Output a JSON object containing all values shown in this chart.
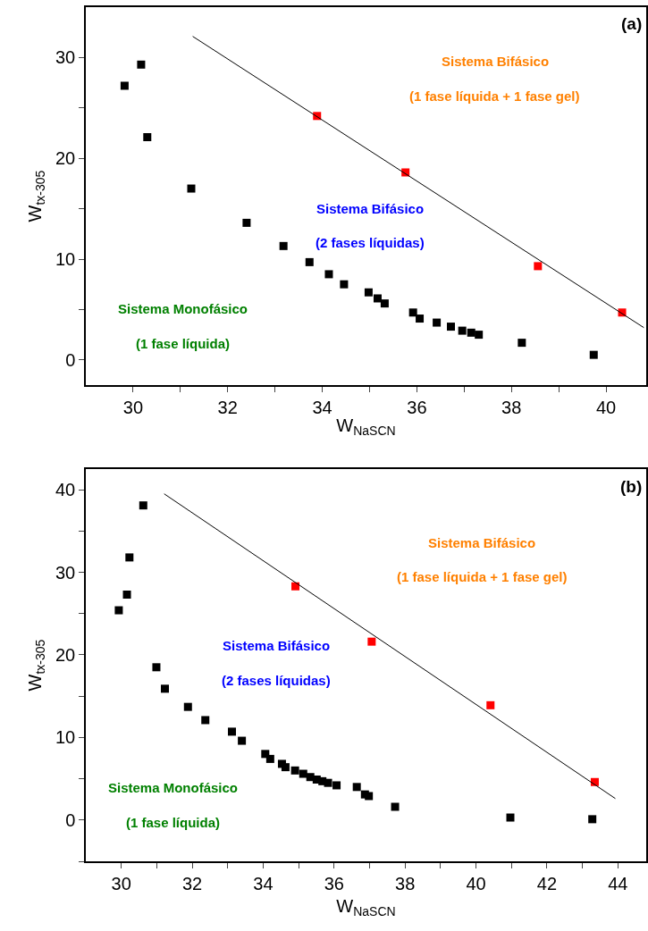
{
  "chart_data": [
    {
      "type": "scatter",
      "xlabel": "W$_{NaSCN}$",
      "ylabel": "W$_{tx-305}$",
      "legend": false,
      "grid": false,
      "xlim": [
        29,
        40.85
      ],
      "xticks": [
        30,
        {
          "value": 31,
          "label": null
        },
        32,
        {
          "value": 33,
          "label": null
        },
        34,
        {
          "value": 35,
          "label": null
        },
        36,
        {
          "value": 37,
          "label": null
        },
        38,
        {
          "value": 39,
          "label": null
        },
        40
      ],
      "ylim": [
        -2.5,
        35
      ],
      "yticks": [
        0,
        {
          "value": 5,
          "label": null
        },
        10,
        {
          "value": 15,
          "label": null
        },
        20,
        {
          "value": 25,
          "label": null
        },
        30
      ],
      "series": [
        {
          "color": "#000000",
          "marker": "square",
          "x": [
            29.82,
            30.17,
            30.3,
            31.23,
            32.4,
            33.18,
            33.73,
            34.14,
            34.46,
            34.98,
            35.17,
            35.32,
            35.92,
            36.06,
            36.42,
            36.72,
            36.96,
            37.15,
            37.31,
            38.22,
            39.74
          ],
          "values": [
            27.2,
            29.3,
            22.1,
            17.0,
            13.6,
            11.3,
            9.7,
            8.5,
            7.5,
            6.7,
            6.1,
            5.6,
            4.7,
            4.1,
            3.7,
            3.3,
            2.9,
            2.7,
            2.5,
            1.7,
            0.5
          ]
        },
        {
          "color": "#ff0000",
          "marker": "square",
          "x": [
            33.89,
            35.76,
            38.56,
            40.34
          ],
          "values": [
            24.2,
            18.6,
            9.3,
            4.7
          ]
        },
        {
          "type": "line",
          "marker": "none",
          "color": "#000000",
          "x": [
            31.26,
            40.8
          ],
          "values": [
            32.1,
            3.2
          ]
        }
      ],
      "annotations": [
        "(a)",
        "Sistema Bifásico",
        "(1 fase líquida + 1 fase gel)",
        "Sistema Bifásico",
        "(2 fases líquidas)",
        "Sistema Monofásico",
        "(1 fase líquida)"
      ]
    },
    {
      "type": "scatter",
      "xlabel": "W$_{NaSCN}$",
      "ylabel": "W$_{tx-305}$",
      "legend": false,
      "grid": false,
      "xlim": [
        29,
        44.8
      ],
      "xticks": [
        30,
        {
          "value": 31,
          "label": null
        },
        32,
        {
          "value": 33,
          "label": null
        },
        34,
        {
          "value": 35,
          "label": null
        },
        36,
        {
          "value": 37,
          "label": null
        },
        38,
        {
          "value": 39,
          "label": null
        },
        40,
        {
          "value": 41,
          "label": null
        },
        42,
        {
          "value": 43,
          "label": null
        },
        44
      ],
      "ylim": [
        -5,
        42.5
      ],
      "yticks": [
        {
          "value": -5,
          "label": null
        },
        0,
        {
          "value": 5,
          "label": null
        },
        10,
        {
          "value": 15,
          "label": null
        },
        20,
        {
          "value": 25,
          "label": null
        },
        30,
        {
          "value": 35,
          "label": null
        },
        40
      ],
      "series": [
        {
          "color": "#000000",
          "marker": "square",
          "x": [
            29.93,
            30.16,
            30.23,
            30.62,
            30.99,
            31.23,
            31.88,
            32.37,
            33.12,
            33.4,
            34.06,
            34.2,
            34.53,
            34.63,
            34.9,
            35.13,
            35.33,
            35.51,
            35.67,
            35.83,
            36.07,
            36.64,
            36.87,
            36.98,
            37.72,
            40.97,
            43.28
          ],
          "values": [
            25.4,
            27.3,
            31.8,
            38.1,
            18.5,
            15.9,
            13.7,
            12.1,
            10.7,
            9.6,
            8.0,
            7.4,
            6.8,
            6.4,
            6.0,
            5.6,
            5.2,
            4.9,
            4.7,
            4.5,
            4.2,
            4.0,
            3.1,
            2.9,
            1.6,
            0.3,
            0.1
          ]
        },
        {
          "color": "#ff0000",
          "marker": "square",
          "x": [
            34.91,
            37.06,
            40.41,
            43.35
          ],
          "values": [
            28.3,
            21.6,
            13.9,
            4.6
          ]
        },
        {
          "type": "line",
          "marker": "none",
          "color": "#000000",
          "x": [
            31.21,
            43.93
          ],
          "values": [
            39.5,
            2.6
          ]
        }
      ],
      "annotations": [
        "(b)",
        "Sistema Bifásico",
        "(1 fase líquida + 1 fase gel)",
        "Sistema Bifásico",
        "(2 fases líquidas)",
        "Sistema Monofásico",
        "(1 fase líquida)"
      ]
    }
  ]
}
